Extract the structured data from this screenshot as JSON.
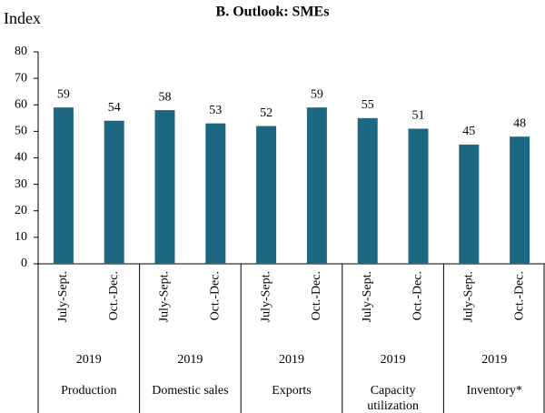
{
  "chart_data": {
    "type": "bar",
    "title": "B. Outlook: SMEs",
    "y_label": "Index",
    "categories": [
      "July-Sept.",
      "Oct.-Dec.",
      "July-Sept.",
      "Oct.-Dec.",
      "July-Sept.",
      "Oct.-Dec.",
      "July-Sept.",
      "Oct.-Dec.",
      "July-Sept.",
      "Oct.-Dec."
    ],
    "values": [
      59,
      54,
      58,
      53,
      52,
      59,
      55,
      51,
      45,
      48
    ],
    "groups": [
      {
        "year": "2019",
        "name": "Production"
      },
      {
        "year": "2019",
        "name": "Domestic sales"
      },
      {
        "year": "2019",
        "name": "Exports"
      },
      {
        "year": "2019",
        "name": "Capacity utilization"
      },
      {
        "year": "2019",
        "name": "Inventory*"
      }
    ],
    "color": "#1e6782",
    "ylim": [
      0,
      80
    ],
    "yticks": [
      0,
      10,
      20,
      30,
      40,
      50,
      60,
      70,
      80
    ]
  }
}
